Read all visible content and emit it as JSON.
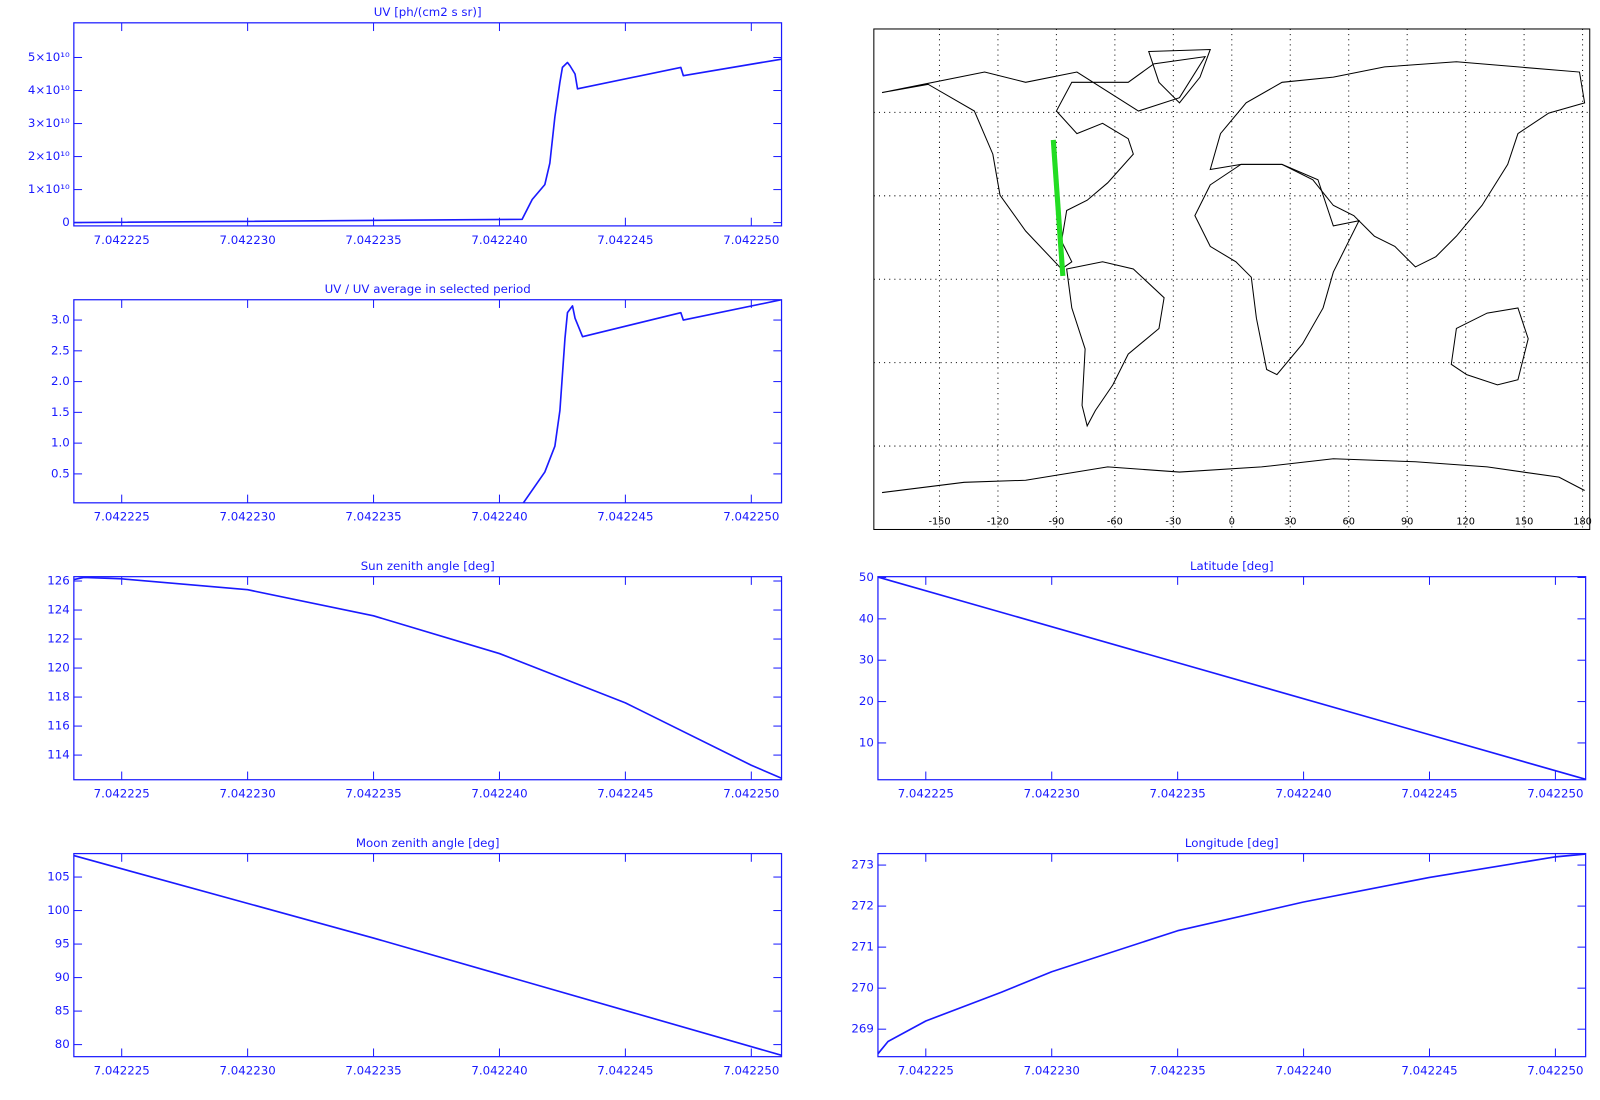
{
  "chart_data": [
    {
      "type": "line",
      "title": "UV [ph/(cm2 s sr)]",
      "x": [
        7.0422231,
        7.0422409,
        7.0422413,
        7.0422418,
        7.042242,
        7.0422422,
        7.0422424,
        7.0422425,
        7.0422427,
        7.0422428,
        7.042243,
        7.0422431,
        7.0422472,
        7.0422473,
        7.0422512
      ],
      "values": [
        0,
        1000000000,
        7000000000,
        11500000000,
        18000000000,
        32000000000,
        42500000000,
        47000000000,
        48500000000,
        47500000000,
        45000000000,
        40500000000,
        47000000000,
        44500000000,
        49500000000
      ],
      "color": "#1a1aff",
      "xlim": [
        7.0422231,
        7.0422512
      ],
      "xticks": [
        7.042225,
        {
          "value": 7.04223,
          "label": "7.042230"
        },
        7.042235,
        {
          "value": 7.04224,
          "label": "7.042240"
        },
        7.042245,
        {
          "value": 7.04225,
          "label": "7.042250"
        }
      ],
      "ylim": [
        -1000000000,
        60500000000
      ],
      "yticks": [
        0,
        {
          "value": 10000000000,
          "label": "1×10¹⁰"
        },
        {
          "value": 20000000000,
          "label": "2×10¹⁰"
        },
        {
          "value": 30000000000,
          "label": "3×10¹⁰"
        },
        {
          "value": 40000000000,
          "label": "4×10¹⁰"
        },
        {
          "value": 50000000000,
          "label": "5×10¹⁰"
        }
      ]
    },
    {
      "type": "line",
      "title": "UV / UV average in selected period",
      "x": [
        7.0422231,
        7.0422409,
        7.0422418,
        7.0422422,
        7.0422424,
        7.0422426,
        7.0422427,
        7.0422429,
        7.042243,
        7.0422433,
        7.0422472,
        7.0422473,
        7.0422512
      ],
      "values": [
        0,
        0,
        0.53,
        0.95,
        1.53,
        2.7,
        3.12,
        3.23,
        3.03,
        2.73,
        3.12,
        3.0,
        3.33
      ],
      "color": "#1a1aff",
      "xlim": [
        7.0422231,
        7.0422512
      ],
      "xticks": [
        7.042225,
        {
          "value": 7.04223,
          "label": "7.042230"
        },
        7.042235,
        {
          "value": 7.04224,
          "label": "7.042240"
        },
        7.042245,
        {
          "value": 7.04225,
          "label": "7.042250"
        }
      ],
      "ylim": [
        0.03,
        3.33
      ],
      "yticks": [
        0.5,
        {
          "value": 1,
          "label": "1.0"
        },
        1.5,
        {
          "value": 2,
          "label": "2.0"
        },
        2.5,
        {
          "value": 3,
          "label": "3.0"
        }
      ]
    },
    {
      "type": "line",
      "title": "Sun zenith angle [deg]",
      "x": [
        7.0422231,
        7.0422235,
        7.042225,
        7.04223,
        7.042235,
        7.04224,
        7.042245,
        7.04225,
        7.0422512
      ],
      "values": [
        126.1,
        126.25,
        126.15,
        125.4,
        123.6,
        121.0,
        117.6,
        113.3,
        112.4
      ],
      "color": "#1a1aff",
      "xlim": [
        7.0422231,
        7.0422512
      ],
      "xticks": [
        7.042225,
        {
          "value": 7.04223,
          "label": "7.042230"
        },
        7.042235,
        {
          "value": 7.04224,
          "label": "7.042240"
        },
        7.042245,
        {
          "value": 7.04225,
          "label": "7.042250"
        }
      ],
      "ylim": [
        112.3,
        126.3
      ],
      "yticks": [
        114,
        116,
        118,
        120,
        122,
        124,
        126
      ]
    },
    {
      "type": "line",
      "title": "Moon zenith angle [deg]",
      "x": [
        7.0422231,
        7.042235,
        7.0422512
      ],
      "values": [
        108.2,
        95.9,
        78.4
      ],
      "color": "#1a1aff",
      "xlim": [
        7.0422231,
        7.0422512
      ],
      "xticks": [
        7.042225,
        {
          "value": 7.04223,
          "label": "7.042230"
        },
        7.042235,
        {
          "value": 7.04224,
          "label": "7.042240"
        },
        7.042245,
        {
          "value": 7.04225,
          "label": "7.042250"
        }
      ],
      "ylim": [
        78.2,
        108.5
      ],
      "yticks": [
        80,
        85,
        90,
        95,
        100,
        105
      ]
    },
    {
      "type": "map",
      "x": [
        -91.6,
        -86.7
      ],
      "values": [
        50.1,
        1.2
      ],
      "color": "#22dd22",
      "xlim": [
        -180,
        180
      ],
      "xticks": [
        -150,
        -120,
        -90,
        -60,
        -30,
        0,
        30,
        60,
        90,
        120,
        150,
        180
      ],
      "ylim": [
        -90,
        90
      ],
      "yticks": [
        -60,
        -30,
        0,
        30,
        60
      ],
      "grid": true
    },
    {
      "type": "line",
      "title": "Latitude [deg]",
      "x": [
        7.0422231,
        7.0422512
      ],
      "values": [
        50.1,
        1.2
      ],
      "color": "#1a1aff",
      "xlim": [
        7.0422231,
        7.0422512
      ],
      "xticks": [
        7.042225,
        {
          "value": 7.04223,
          "label": "7.042230"
        },
        7.042235,
        {
          "value": 7.04224,
          "label": "7.042240"
        },
        7.042245,
        {
          "value": 7.04225,
          "label": "7.042250"
        }
      ],
      "ylim": [
        1.1,
        50.2
      ],
      "yticks": [
        10,
        20,
        30,
        40,
        50
      ]
    },
    {
      "type": "line",
      "title": "Longitude [deg]",
      "x": [
        7.0422231,
        7.0422235,
        7.042225,
        7.042228,
        7.04223,
        7.042235,
        7.04224,
        7.042245,
        7.04225,
        7.0422512
      ],
      "values": [
        268.4,
        268.7,
        269.2,
        269.9,
        270.4,
        271.4,
        272.1,
        272.7,
        273.2,
        273.27
      ],
      "color": "#1a1aff",
      "xlim": [
        7.0422231,
        7.0422512
      ],
      "xticks": [
        7.042225,
        {
          "value": 7.04223,
          "label": "7.042230"
        },
        7.042235,
        {
          "value": 7.04224,
          "label": "7.042240"
        },
        7.042245,
        {
          "value": 7.04225,
          "label": "7.042250"
        }
      ],
      "ylim": [
        268.33,
        273.28
      ],
      "yticks": [
        269,
        270,
        271,
        272,
        273
      ]
    }
  ]
}
